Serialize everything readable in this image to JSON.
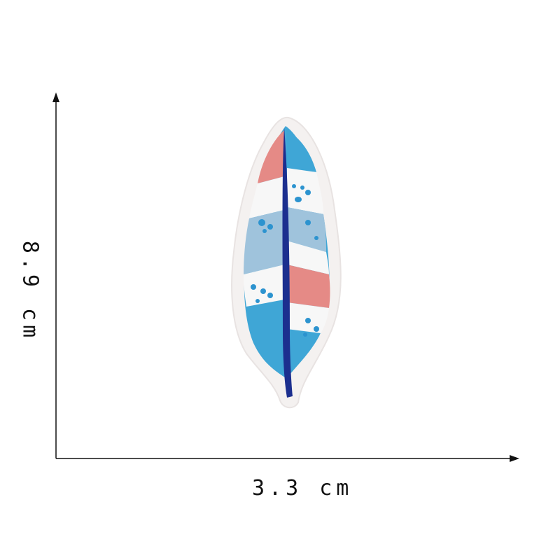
{
  "dimensions": {
    "width_label": "3.3 cm",
    "height_label": "8.9 cm"
  },
  "colors": {
    "axis": "#111111",
    "backing": "#f4f1f0",
    "pink": "#e58a86",
    "blue": "#3fa6d6",
    "light_blue": "#9fc3dc",
    "white_thread": "#f7f7f7",
    "shaft": "#1c2f8f",
    "dots": "#2c93cf"
  }
}
